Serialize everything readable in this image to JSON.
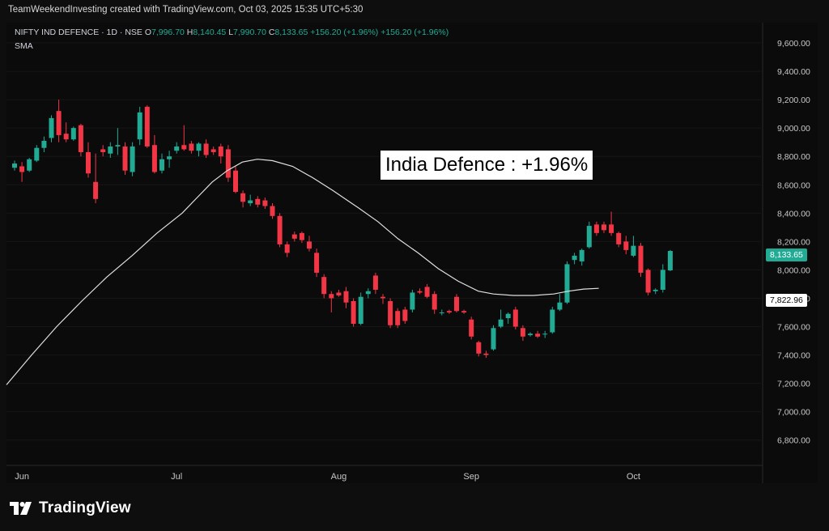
{
  "caption": "TeamWeekendInvesting created with TradingView.com, Oct 03, 2025 15:35 UTC+5:30",
  "legend": {
    "symbol": "NIFTY IND DEFENCE · 1D · NSE",
    "o_label": "O",
    "o_value": "7,996.70",
    "h_label": "H",
    "h_value": "8,140.45",
    "l_label": "L",
    "l_value": "7,990.70",
    "c_label": "C",
    "c_value": "8,133.65",
    "change1": "+156.20 (+1.96%)",
    "change2": "+156.20 (+1.96%)",
    "indicator": "SMA"
  },
  "annotation": "India Defence : +1.96%",
  "price_badge": "8,133.65",
  "sma_badge": "7,822.96",
  "footer_brand": "TradingView",
  "colors": {
    "up": "#22ab94",
    "down": "#f23645",
    "sma": "#e0e0e0",
    "background": "#0b0b0b",
    "text": "#d1d4dc"
  },
  "chart_data": {
    "type": "candlestick",
    "ylim": [
      6650,
      9720
    ],
    "yticks": [
      "9,600.00",
      "9,400.00",
      "9,200.00",
      "9,000.00",
      "8,800.00",
      "8,600.00",
      "8,400.00",
      "8,200.00",
      "8,000.00",
      "7,800.00",
      "7,600.00",
      "7,400.00",
      "7,200.00",
      "7,000.00",
      "6,800.00"
    ],
    "ytick_values": [
      9600,
      9400,
      9200,
      9000,
      8800,
      8600,
      8400,
      8200,
      8000,
      7800,
      7600,
      7400,
      7200,
      7000,
      6800
    ],
    "xticks": [
      {
        "label": "Jun",
        "index": 1
      },
      {
        "label": "Jul",
        "index": 22
      },
      {
        "label": "Aug",
        "index": 44
      },
      {
        "label": "Sep",
        "index": 62
      },
      {
        "label": "Oct",
        "index": 84
      }
    ],
    "candles": [
      {
        "o": 8720,
        "h": 8770,
        "l": 8700,
        "c": 8750
      },
      {
        "o": 8730,
        "h": 8760,
        "l": 8620,
        "c": 8690
      },
      {
        "o": 8700,
        "h": 8790,
        "l": 8690,
        "c": 8780
      },
      {
        "o": 8770,
        "h": 8880,
        "l": 8760,
        "c": 8860
      },
      {
        "o": 8860,
        "h": 8940,
        "l": 8830,
        "c": 8910
      },
      {
        "o": 8930,
        "h": 9090,
        "l": 8900,
        "c": 9070
      },
      {
        "o": 9120,
        "h": 9200,
        "l": 8900,
        "c": 8950
      },
      {
        "o": 8960,
        "h": 9040,
        "l": 8900,
        "c": 8920
      },
      {
        "o": 8920,
        "h": 9010,
        "l": 8910,
        "c": 9000
      },
      {
        "o": 9020,
        "h": 9030,
        "l": 8800,
        "c": 8830
      },
      {
        "o": 8830,
        "h": 8900,
        "l": 8650,
        "c": 8680
      },
      {
        "o": 8620,
        "h": 8820,
        "l": 8470,
        "c": 8500
      },
      {
        "o": 8850,
        "h": 8880,
        "l": 8800,
        "c": 8830
      },
      {
        "o": 8820,
        "h": 8900,
        "l": 8790,
        "c": 8870
      },
      {
        "o": 8870,
        "h": 9000,
        "l": 8810,
        "c": 8880
      },
      {
        "o": 8870,
        "h": 8900,
        "l": 8670,
        "c": 8700
      },
      {
        "o": 8690,
        "h": 8900,
        "l": 8660,
        "c": 8870
      },
      {
        "o": 8920,
        "h": 9150,
        "l": 8880,
        "c": 9110
      },
      {
        "o": 9150,
        "h": 9160,
        "l": 8860,
        "c": 8870
      },
      {
        "o": 8880,
        "h": 8950,
        "l": 8680,
        "c": 8690
      },
      {
        "o": 8700,
        "h": 8820,
        "l": 8680,
        "c": 8780
      },
      {
        "o": 8780,
        "h": 8840,
        "l": 8720,
        "c": 8800
      },
      {
        "o": 8840,
        "h": 8900,
        "l": 8820,
        "c": 8870
      },
      {
        "o": 8880,
        "h": 9020,
        "l": 8840,
        "c": 8850
      },
      {
        "o": 8890,
        "h": 8910,
        "l": 8820,
        "c": 8840
      },
      {
        "o": 8840,
        "h": 8900,
        "l": 8800,
        "c": 8890
      },
      {
        "o": 8890,
        "h": 8920,
        "l": 8790,
        "c": 8810
      },
      {
        "o": 8850,
        "h": 8870,
        "l": 8810,
        "c": 8830
      },
      {
        "o": 8870,
        "h": 8890,
        "l": 8750,
        "c": 8800
      },
      {
        "o": 8850,
        "h": 8880,
        "l": 8620,
        "c": 8650
      },
      {
        "o": 8700,
        "h": 8730,
        "l": 8540,
        "c": 8550
      },
      {
        "o": 8540,
        "h": 8560,
        "l": 8440,
        "c": 8480
      },
      {
        "o": 8470,
        "h": 8530,
        "l": 8450,
        "c": 8490
      },
      {
        "o": 8500,
        "h": 8520,
        "l": 8440,
        "c": 8460
      },
      {
        "o": 8490,
        "h": 8510,
        "l": 8430,
        "c": 8450
      },
      {
        "o": 8450,
        "h": 8470,
        "l": 8360,
        "c": 8380
      },
      {
        "o": 8380,
        "h": 8400,
        "l": 8160,
        "c": 8180
      },
      {
        "o": 8180,
        "h": 8200,
        "l": 8090,
        "c": 8120
      },
      {
        "o": 8250,
        "h": 8270,
        "l": 8200,
        "c": 8220
      },
      {
        "o": 8260,
        "h": 8270,
        "l": 8190,
        "c": 8210
      },
      {
        "o": 8200,
        "h": 8240,
        "l": 8130,
        "c": 8150
      },
      {
        "o": 8120,
        "h": 8150,
        "l": 7950,
        "c": 7980
      },
      {
        "o": 7950,
        "h": 7970,
        "l": 7800,
        "c": 7830
      },
      {
        "o": 7830,
        "h": 7850,
        "l": 7700,
        "c": 7800
      },
      {
        "o": 7840,
        "h": 7860,
        "l": 7810,
        "c": 7820
      },
      {
        "o": 7850,
        "h": 7880,
        "l": 7730,
        "c": 7770
      },
      {
        "o": 7780,
        "h": 7800,
        "l": 7600,
        "c": 7620
      },
      {
        "o": 7620,
        "h": 7840,
        "l": 7610,
        "c": 7810
      },
      {
        "o": 7830,
        "h": 7870,
        "l": 7800,
        "c": 7850
      },
      {
        "o": 7960,
        "h": 7980,
        "l": 7830,
        "c": 7860
      },
      {
        "o": 7810,
        "h": 7830,
        "l": 7760,
        "c": 7800
      },
      {
        "o": 7780,
        "h": 7800,
        "l": 7590,
        "c": 7610
      },
      {
        "o": 7710,
        "h": 7730,
        "l": 7590,
        "c": 7610
      },
      {
        "o": 7720,
        "h": 7740,
        "l": 7620,
        "c": 7640
      },
      {
        "o": 7720,
        "h": 7860,
        "l": 7700,
        "c": 7840
      },
      {
        "o": 7850,
        "h": 7870,
        "l": 7830,
        "c": 7840
      },
      {
        "o": 7880,
        "h": 7900,
        "l": 7800,
        "c": 7810
      },
      {
        "o": 7830,
        "h": 7850,
        "l": 7690,
        "c": 7720
      },
      {
        "o": 7700,
        "h": 7720,
        "l": 7680,
        "c": 7700
      },
      {
        "o": 7710,
        "h": 7720,
        "l": 7690,
        "c": 7700
      },
      {
        "o": 7810,
        "h": 7830,
        "l": 7700,
        "c": 7710
      },
      {
        "o": 7710,
        "h": 7720,
        "l": 7690,
        "c": 7700
      },
      {
        "o": 7650,
        "h": 7670,
        "l": 7510,
        "c": 7530
      },
      {
        "o": 7490,
        "h": 7500,
        "l": 7390,
        "c": 7410
      },
      {
        "o": 7410,
        "h": 7430,
        "l": 7380,
        "c": 7400
      },
      {
        "o": 7440,
        "h": 7610,
        "l": 7430,
        "c": 7590
      },
      {
        "o": 7600,
        "h": 7720,
        "l": 7590,
        "c": 7650
      },
      {
        "o": 7660,
        "h": 7700,
        "l": 7620,
        "c": 7690
      },
      {
        "o": 7720,
        "h": 7740,
        "l": 7580,
        "c": 7600
      },
      {
        "o": 7590,
        "h": 7610,
        "l": 7500,
        "c": 7530
      },
      {
        "o": 7540,
        "h": 7560,
        "l": 7530,
        "c": 7550
      },
      {
        "o": 7550,
        "h": 7570,
        "l": 7520,
        "c": 7530
      },
      {
        "o": 7550,
        "h": 7570,
        "l": 7520,
        "c": 7550
      },
      {
        "o": 7560,
        "h": 7740,
        "l": 7550,
        "c": 7720
      },
      {
        "o": 7720,
        "h": 7830,
        "l": 7710,
        "c": 7770
      },
      {
        "o": 7770,
        "h": 8060,
        "l": 7760,
        "c": 8040
      },
      {
        "o": 8070,
        "h": 8120,
        "l": 8040,
        "c": 8100
      },
      {
        "o": 8060,
        "h": 8150,
        "l": 8030,
        "c": 8140
      },
      {
        "o": 8160,
        "h": 8340,
        "l": 8150,
        "c": 8310
      },
      {
        "o": 8320,
        "h": 8340,
        "l": 8240,
        "c": 8260
      },
      {
        "o": 8320,
        "h": 8340,
        "l": 8260,
        "c": 8280
      },
      {
        "o": 8320,
        "h": 8410,
        "l": 8240,
        "c": 8260
      },
      {
        "o": 8260,
        "h": 8270,
        "l": 8160,
        "c": 8180
      },
      {
        "o": 8200,
        "h": 8240,
        "l": 8110,
        "c": 8140
      },
      {
        "o": 8100,
        "h": 8240,
        "l": 8090,
        "c": 8170
      },
      {
        "o": 8170,
        "h": 8190,
        "l": 7950,
        "c": 7980
      },
      {
        "o": 8000,
        "h": 8010,
        "l": 7820,
        "c": 7840
      },
      {
        "o": 7850,
        "h": 7870,
        "l": 7830,
        "c": 7860
      },
      {
        "o": 7860,
        "h": 8040,
        "l": 7840,
        "c": 8000
      },
      {
        "o": 7996.7,
        "h": 8140.45,
        "l": 7990.7,
        "c": 8133.65
      }
    ],
    "sma": [
      [
        0,
        7190
      ],
      [
        5,
        7400
      ],
      [
        10,
        7600
      ],
      [
        15,
        7780
      ],
      [
        20,
        7950
      ],
      [
        25,
        8100
      ],
      [
        30,
        8260
      ],
      [
        35,
        8400
      ],
      [
        38,
        8510
      ],
      [
        41,
        8620
      ],
      [
        44,
        8700
      ],
      [
        47,
        8760
      ],
      [
        50,
        8780
      ],
      [
        53,
        8770
      ],
      [
        57,
        8730
      ],
      [
        61,
        8650
      ],
      [
        65,
        8560
      ],
      [
        70,
        8440
      ],
      [
        74,
        8340
      ],
      [
        78,
        8220
      ],
      [
        82,
        8120
      ],
      [
        86,
        8010
      ],
      [
        90,
        7920
      ],
      [
        94,
        7850
      ],
      [
        97,
        7830
      ],
      [
        101,
        7820
      ],
      [
        105,
        7820
      ],
      [
        109,
        7830
      ],
      [
        112,
        7850
      ],
      [
        115,
        7865
      ],
      [
        118,
        7870
      ]
    ]
  }
}
